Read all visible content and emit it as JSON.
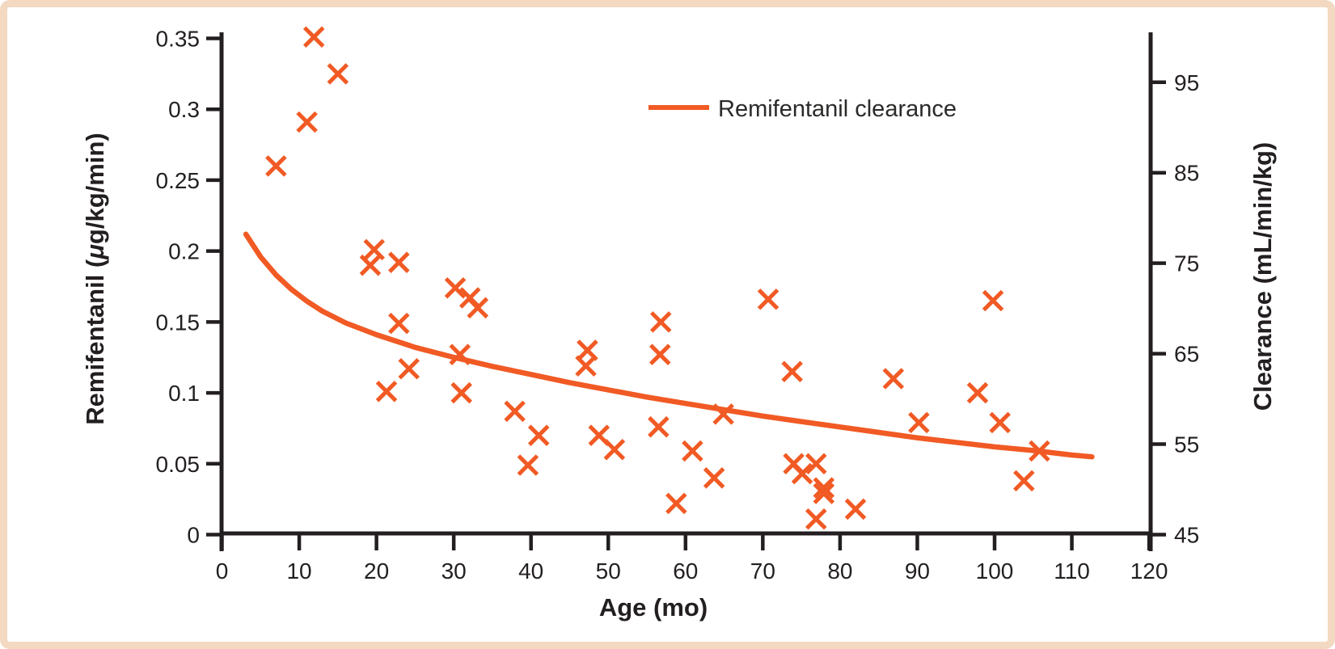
{
  "figure": {
    "background_color": "#FFFFFF",
    "frame_color": "#F3D9C2",
    "accent_orange": "#F15A24",
    "ink_color": "#231F20"
  },
  "legend": {
    "label": "Remifentanil clearance",
    "swatch": "orange-line"
  },
  "axes": {
    "x": {
      "label": "Age (mo)",
      "min": 0,
      "max": 120,
      "ticks": [
        0,
        10,
        20,
        30,
        40,
        50,
        60,
        70,
        80,
        90,
        100,
        110,
        120
      ]
    },
    "y_left": {
      "label": "Remifentanil (μg/kg/min)",
      "min": 0,
      "max": 0.35,
      "ticks": [
        0,
        0.05,
        0.1,
        0.15,
        0.2,
        0.25,
        0.3,
        0.35
      ],
      "tick_labels": [
        "0",
        "0.05",
        "0.1",
        "0.15",
        "0.2",
        "0.25",
        "0.3",
        "0.35"
      ]
    },
    "y_right": {
      "label": "Clearance (mL/min/kg)",
      "min": 45,
      "ticks": [
        45,
        55,
        65,
        75,
        85,
        95
      ],
      "tick_labels": [
        "45",
        "55",
        "65",
        "75",
        "85",
        "95"
      ]
    }
  },
  "chart_data": {
    "type": "scatter",
    "title": "",
    "xlabel": "Age (mo)",
    "ylabel_left": "Remifentanil (μg/kg/min)",
    "ylabel_right": "Clearance (mL/min/kg)",
    "xlim": [
      0,
      120
    ],
    "ylim_left": [
      0,
      0.35
    ],
    "ylim_right_visible_ticks": [
      45,
      95
    ],
    "grid": false,
    "legend_position": "top-center",
    "series": [
      {
        "id": "remifentanil-observations",
        "type": "scatter",
        "marker": "x",
        "color": "#F15A24",
        "axis": "left",
        "points": [
          [
            11.9,
            0.351
          ],
          [
            15.0,
            0.325
          ],
          [
            11.0,
            0.291
          ],
          [
            7.0,
            0.26
          ],
          [
            19.7,
            0.201
          ],
          [
            19.2,
            0.19
          ],
          [
            22.9,
            0.192
          ],
          [
            30.2,
            0.174
          ],
          [
            32.1,
            0.167
          ],
          [
            33.1,
            0.16
          ],
          [
            22.9,
            0.149
          ],
          [
            24.2,
            0.117
          ],
          [
            21.3,
            0.101
          ],
          [
            31.0,
            0.1
          ],
          [
            30.8,
            0.127
          ],
          [
            47.3,
            0.13
          ],
          [
            47.1,
            0.119
          ],
          [
            37.9,
            0.087
          ],
          [
            41.0,
            0.07
          ],
          [
            48.8,
            0.07
          ],
          [
            50.8,
            0.06
          ],
          [
            39.6,
            0.049
          ],
          [
            56.8,
            0.15
          ],
          [
            56.7,
            0.127
          ],
          [
            56.5,
            0.076
          ],
          [
            58.8,
            0.022
          ],
          [
            60.9,
            0.059
          ],
          [
            63.7,
            0.04
          ],
          [
            64.9,
            0.085
          ],
          [
            70.7,
            0.166
          ],
          [
            73.8,
            0.115
          ],
          [
            74.0,
            0.05
          ],
          [
            75.1,
            0.043
          ],
          [
            76.9,
            0.05
          ],
          [
            77.9,
            0.033
          ],
          [
            77.9,
            0.029
          ],
          [
            76.9,
            0.011
          ],
          [
            82.0,
            0.018
          ],
          [
            86.9,
            0.11
          ],
          [
            90.2,
            0.079
          ],
          [
            97.8,
            0.1
          ],
          [
            99.8,
            0.165
          ],
          [
            100.7,
            0.079
          ],
          [
            103.8,
            0.038
          ],
          [
            105.8,
            0.059
          ]
        ]
      },
      {
        "id": "remifentanil-clearance-curve",
        "name": "Remifentanil clearance",
        "type": "line",
        "color": "#F15A24",
        "axis": "right",
        "points_age_vs_clearance": [
          [
            3.1,
            78.2
          ],
          [
            5,
            75.7
          ],
          [
            7,
            73.7
          ],
          [
            9,
            72.1
          ],
          [
            11,
            70.8
          ],
          [
            13,
            69.7
          ],
          [
            16,
            68.4
          ],
          [
            20,
            67.1
          ],
          [
            25,
            65.7
          ],
          [
            30,
            64.6
          ],
          [
            35,
            63.6
          ],
          [
            40,
            62.7
          ],
          [
            45,
            61.8
          ],
          [
            50,
            61.0
          ],
          [
            55,
            60.2
          ],
          [
            60,
            59.5
          ],
          [
            65,
            58.8
          ],
          [
            70,
            58.1
          ],
          [
            75,
            57.5
          ],
          [
            80,
            56.9
          ],
          [
            85,
            56.3
          ],
          [
            90,
            55.7
          ],
          [
            95,
            55.2
          ],
          [
            100,
            54.7
          ],
          [
            105,
            54.3
          ],
          [
            110,
            53.8
          ],
          [
            112.6,
            53.6
          ]
        ]
      }
    ]
  }
}
